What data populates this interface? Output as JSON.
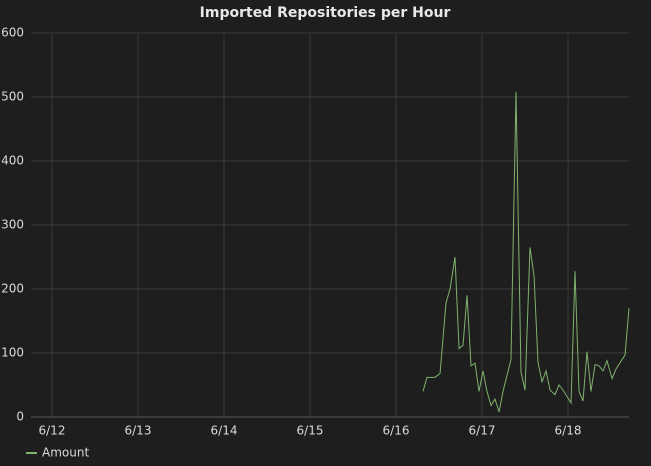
{
  "chart_data": {
    "type": "line",
    "title": "Imported Repositories per Hour",
    "x": [
      16.314,
      16.36,
      16.453,
      16.512,
      16.581,
      16.628,
      16.686,
      16.733,
      16.779,
      16.826,
      16.872,
      16.919,
      16.965,
      17.012,
      17.058,
      17.105,
      17.151,
      17.198,
      17.244,
      17.337,
      17.395,
      17.453,
      17.5,
      17.558,
      17.605,
      17.651,
      17.698,
      17.744,
      17.791,
      17.849,
      17.895,
      17.942,
      17.988,
      18.035,
      18.081,
      18.128,
      18.174,
      18.221,
      18.267,
      18.314,
      18.36,
      18.407,
      18.453,
      18.512,
      18.558,
      18.663,
      18.709
    ],
    "series": [
      {
        "name": "Amount",
        "color": "#7eb26d",
        "values": [
          40,
          62,
          62,
          68,
          178,
          200,
          250,
          107,
          112,
          190,
          80,
          84,
          40,
          72,
          40,
          18,
          28,
          8,
          40,
          90,
          508,
          70,
          42,
          265,
          220,
          85,
          55,
          72,
          42,
          35,
          50,
          42,
          32,
          22,
          228,
          40,
          25,
          102,
          40,
          82,
          80,
          72,
          88,
          60,
          75,
          97,
          170
        ]
      }
    ],
    "xlim": [
      11.756,
      18.709
    ],
    "xticks": [
      {
        "value": 12,
        "label": "6/12"
      },
      {
        "value": 13,
        "label": "6/13"
      },
      {
        "value": 14,
        "label": "6/14"
      },
      {
        "value": 15,
        "label": "6/15"
      },
      {
        "value": 16,
        "label": "6/16"
      },
      {
        "value": 17,
        "label": "6/17"
      },
      {
        "value": 18,
        "label": "6/18"
      }
    ],
    "ylim": [
      0,
      600
    ],
    "yticks": [
      0,
      100,
      200,
      300,
      400,
      500,
      600
    ],
    "grid": true,
    "legend": "bottom-left"
  }
}
